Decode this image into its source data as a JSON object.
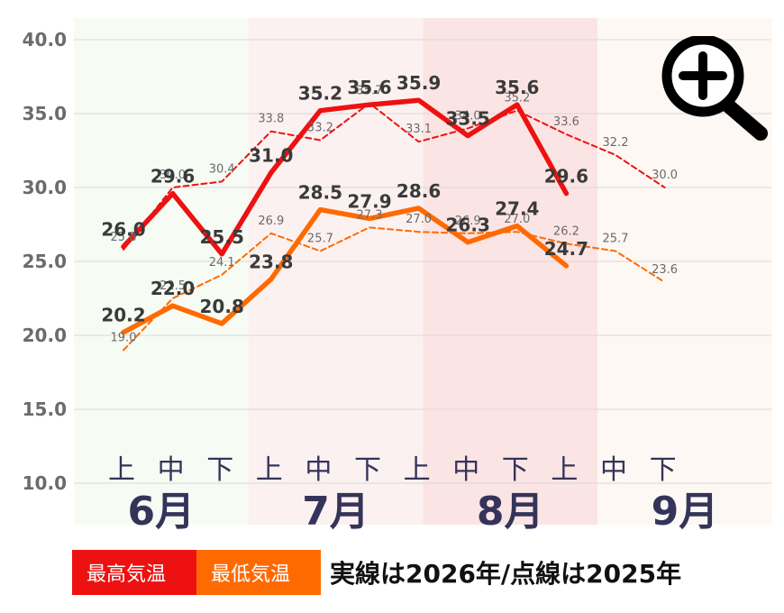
{
  "chart_data": {
    "type": "line",
    "categories": [
      "上",
      "中",
      "下",
      "上",
      "中",
      "下",
      "上",
      "中",
      "下",
      "上",
      "中",
      "下"
    ],
    "month_groups": [
      {
        "label": "6月",
        "color": "#f6fbf4"
      },
      {
        "label": "7月",
        "color": "#fcf1f1"
      },
      {
        "label": "8月",
        "color": "#fbe4e4"
      },
      {
        "label": "9月",
        "color": "#fdf8f3"
      }
    ],
    "ylim": [
      10,
      40
    ],
    "yticks": [
      "10.0",
      "15.0",
      "20.0",
      "25.0",
      "30.0",
      "35.0",
      "40.0"
    ],
    "grid": true,
    "series": [
      {
        "name": "最高気温",
        "year": "2026",
        "style": "solid",
        "color": "#ee1111",
        "values": [
          26.0,
          29.6,
          25.5,
          31.0,
          35.2,
          35.6,
          35.9,
          33.5,
          35.6,
          29.6,
          null,
          null
        ],
        "labels": [
          "26.0",
          "29.6",
          "25.5",
          "31.0",
          "35.2",
          "35.6",
          "35.9",
          "33.5",
          "35.6",
          "29.6",
          "",
          ""
        ]
      },
      {
        "name": "最低気温",
        "year": "2026",
        "style": "solid",
        "color": "#ff6a00",
        "values": [
          20.2,
          22.0,
          20.8,
          23.8,
          28.5,
          27.9,
          28.6,
          26.3,
          27.4,
          24.7,
          null,
          null
        ],
        "labels": [
          "20.2",
          "22.0",
          "20.8",
          "23.8",
          "28.5",
          "27.9",
          "28.6",
          "26.3",
          "27.4",
          "24.7",
          "",
          ""
        ]
      },
      {
        "name": "最高気温",
        "year": "2025",
        "style": "dashed",
        "color": "#ee1111",
        "values": [
          25.8,
          30.0,
          30.4,
          33.8,
          33.2,
          35.7,
          33.1,
          34.0,
          35.2,
          33.6,
          32.2,
          30.0
        ],
        "labels": [
          "25.8",
          "30.0",
          "30.4",
          "33.8",
          "33.2",
          "35.7",
          "33.1",
          "34.0",
          "35.2",
          "33.6",
          "32.2",
          "30.0"
        ]
      },
      {
        "name": "最低気温",
        "year": "2025",
        "style": "dashed",
        "color": "#ff6a00",
        "values": [
          19.0,
          22.5,
          24.1,
          26.9,
          25.7,
          27.3,
          27.0,
          26.9,
          27.0,
          26.2,
          25.7,
          23.6
        ],
        "labels": [
          "19.0",
          "22.5",
          "24.1",
          "26.9",
          "25.7",
          "27.3",
          "27.0",
          "26.9",
          "27.0",
          "26.2",
          "25.7",
          "23.6"
        ]
      }
    ]
  },
  "legend": {
    "max_label": "最高気温",
    "min_label": "最低気温",
    "note": "実線は2026年/点線は2025年",
    "max_color": "#ee1111",
    "min_color": "#ff6a00"
  },
  "zoom_button": {
    "icon": "zoom-in-icon"
  }
}
